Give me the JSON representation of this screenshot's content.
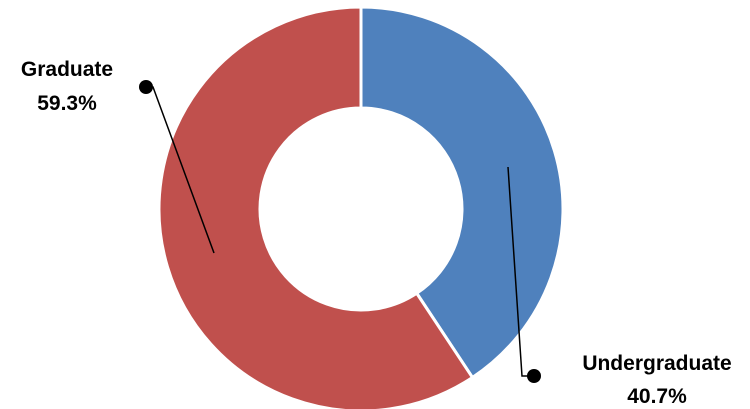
{
  "chart_data": {
    "type": "pie",
    "variant": "donut",
    "start_angle_deg": 0,
    "direction": "clockwise",
    "slices": [
      {
        "name": "Undergraduate",
        "value": 40.7,
        "value_label": "40.7%",
        "color": "#4F81BD"
      },
      {
        "name": "Graduate",
        "value": 59.3,
        "value_label": "59.3%",
        "color": "#C0504D"
      }
    ],
    "legend": "none",
    "data_labels": "outside with leader lines"
  }
}
